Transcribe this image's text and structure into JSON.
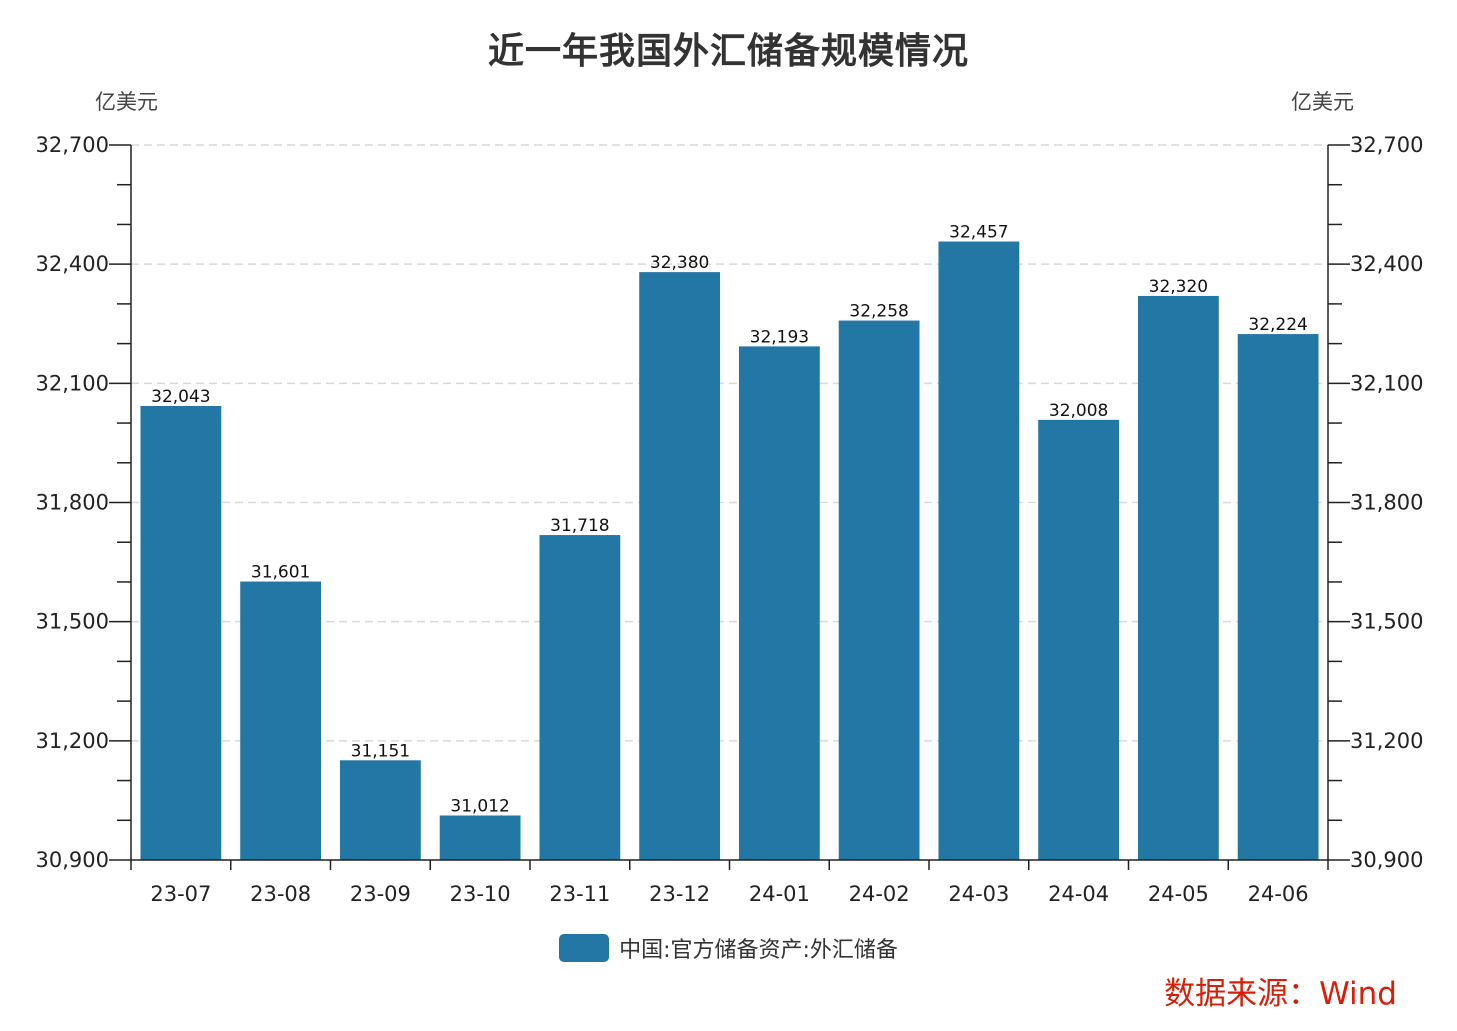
{
  "colors": {
    "bar": "#2377a4",
    "source": "#d81e06",
    "grid": "#d9d9d9",
    "axis": "#222222"
  },
  "source_note": "数据来源：Wind",
  "chart_data": {
    "type": "bar",
    "title": "近一年我国外汇储备规模情况",
    "ylabel": "亿美元",
    "ylabel_right": "亿美元",
    "xlabel": "",
    "categories": [
      "23-07",
      "23-08",
      "23-09",
      "23-10",
      "23-11",
      "23-12",
      "24-01",
      "24-02",
      "24-03",
      "24-04",
      "24-05",
      "24-06"
    ],
    "series": [
      {
        "name": "中国:官方储备资产:外汇储备",
        "values": [
          32043,
          31601,
          31151,
          31012,
          31718,
          32380,
          32193,
          32258,
          32457,
          32008,
          32320,
          32224
        ],
        "labels": [
          "32,043",
          "31,601",
          "31,151",
          "31,012",
          "31,718",
          "32,380",
          "32,193",
          "32,258",
          "32,457",
          "32,008",
          "32,320",
          "32,224"
        ]
      }
    ],
    "ylim": [
      30900,
      32700
    ],
    "yticks": [
      30900,
      31200,
      31500,
      31800,
      32100,
      32400,
      32700
    ],
    "ytick_labels": [
      "30,900",
      "31,200",
      "31,500",
      "31,800",
      "32,100",
      "32,400",
      "32,700"
    ],
    "grid": "horizontal-dashed",
    "legend_position": "bottom-center"
  }
}
